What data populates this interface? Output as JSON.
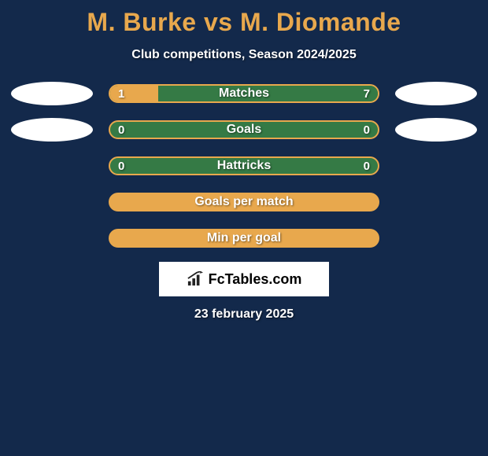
{
  "colors": {
    "page_bg": "#13294b",
    "title_color": "#e8a84d",
    "text_color": "#ffffff",
    "subtitle_color": "#ffffff",
    "oval_fill": "#ffffff",
    "bar_border": "#e8a84d",
    "bar_track_bg": "#357a45",
    "left_fill": "#e8a84d",
    "right_fill": "#357a45",
    "empty_fill": "#e8a84d",
    "badge_bg": "#ffffff",
    "badge_text": "#000000",
    "brand_icon": "#222222"
  },
  "title": "M. Burke vs M. Diomande",
  "subtitle": "Club competitions, Season 2024/2025",
  "brand_text": "FcTables.com",
  "date_text": "23 february 2025",
  "rows": [
    {
      "label": "Matches",
      "left_value": "1",
      "right_value": "7",
      "left_pct": 18,
      "right_pct": 82,
      "show_values": true,
      "show_ovals": true,
      "full_fill": false
    },
    {
      "label": "Goals",
      "left_value": "0",
      "right_value": "0",
      "left_pct": 0,
      "right_pct": 0,
      "show_values": true,
      "show_ovals": true,
      "full_fill": false
    },
    {
      "label": "Hattricks",
      "left_value": "0",
      "right_value": "0",
      "left_pct": 0,
      "right_pct": 0,
      "show_values": true,
      "show_ovals": false,
      "full_fill": false
    },
    {
      "label": "Goals per match",
      "left_value": "",
      "right_value": "",
      "left_pct": 0,
      "right_pct": 0,
      "show_values": false,
      "show_ovals": false,
      "full_fill": true
    },
    {
      "label": "Min per goal",
      "left_value": "",
      "right_value": "",
      "left_pct": 0,
      "right_pct": 0,
      "show_values": false,
      "show_ovals": false,
      "full_fill": true
    }
  ]
}
